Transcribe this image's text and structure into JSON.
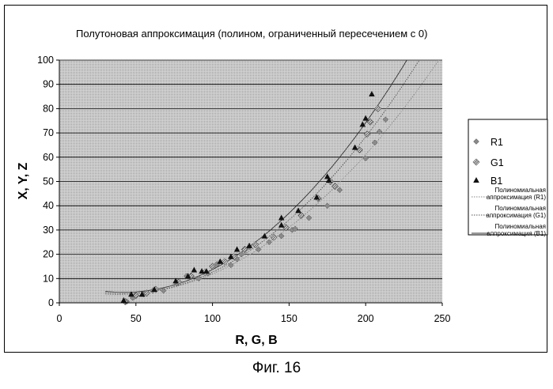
{
  "caption": "Фиг. 16",
  "chart_data": {
    "type": "scatter",
    "title": "Полутоновая аппроксимация (полином, ограниченный пересечением с 0)",
    "xlabel": "R, G, B",
    "ylabel": "X, Y, Z",
    "xlim": [
      0,
      250
    ],
    "ylim": [
      0,
      100
    ],
    "x_ticks": [
      "0",
      "50",
      "100",
      "150",
      "200",
      "250"
    ],
    "y_ticks": [
      "0",
      "10",
      "20",
      "30",
      "40",
      "50",
      "60",
      "70",
      "80",
      "90",
      "100"
    ],
    "grid": "horizontal",
    "legend_position": "right",
    "series": [
      {
        "name": "R1",
        "marker": "diamond",
        "color": "#8a8a8a",
        "points": [
          [
            44,
            0.5
          ],
          [
            48,
            2
          ],
          [
            55,
            3.5
          ],
          [
            61,
            5
          ],
          [
            68,
            5
          ],
          [
            77,
            8
          ],
          [
            83,
            11
          ],
          [
            91,
            10
          ],
          [
            97,
            12
          ],
          [
            103,
            16
          ],
          [
            112,
            15.5
          ],
          [
            116,
            18
          ],
          [
            119,
            20
          ],
          [
            124,
            23
          ],
          [
            130,
            22
          ],
          [
            137,
            25
          ],
          [
            145,
            27.5
          ],
          [
            152,
            30
          ],
          [
            154,
            30.5
          ],
          [
            163,
            35
          ],
          [
            175,
            40
          ],
          [
            183,
            46.5
          ],
          [
            200,
            59.5
          ],
          [
            206,
            66
          ],
          [
            209,
            70.5
          ],
          [
            213,
            75.5
          ]
        ]
      },
      {
        "name": "G1",
        "marker": "hatched",
        "color": "#606060",
        "points": [
          [
            43,
            0.5
          ],
          [
            50,
            3
          ],
          [
            57,
            4
          ],
          [
            63,
            5.5
          ],
          [
            78,
            8.5
          ],
          [
            86,
            11
          ],
          [
            95,
            12.5
          ],
          [
            100,
            15
          ],
          [
            108,
            17
          ],
          [
            114,
            19
          ],
          [
            121,
            22
          ],
          [
            128,
            24
          ],
          [
            140,
            27
          ],
          [
            148,
            31
          ],
          [
            158,
            36
          ],
          [
            169,
            43
          ],
          [
            177,
            50
          ],
          [
            180,
            48
          ],
          [
            196,
            63
          ],
          [
            201,
            69.5
          ],
          [
            203,
            74.5
          ],
          [
            208,
            80
          ]
        ]
      },
      {
        "name": "B1",
        "marker": "triangle",
        "color": "#111111",
        "points": [
          [
            42,
            1
          ],
          [
            47,
            3.5
          ],
          [
            54,
            3.5
          ],
          [
            62,
            5.5
          ],
          [
            76,
            9
          ],
          [
            84,
            11
          ],
          [
            88,
            13.5
          ],
          [
            93,
            13
          ],
          [
            96,
            13
          ],
          [
            105,
            17
          ],
          [
            112,
            19
          ],
          [
            116,
            22
          ],
          [
            124,
            23.5
          ],
          [
            134,
            27.5
          ],
          [
            145,
            32
          ],
          [
            145,
            35
          ],
          [
            156,
            38
          ],
          [
            168,
            43.5
          ],
          [
            175,
            52
          ],
          [
            176,
            50.5
          ],
          [
            193,
            64
          ],
          [
            198,
            73.5
          ],
          [
            200,
            76
          ],
          [
            204,
            86
          ]
        ]
      }
    ],
    "trendlines": [
      {
        "name": "Полиномиальная аппроксимация (R1)",
        "series": "R1",
        "style": "dotted",
        "color": "#888888"
      },
      {
        "name": "Полиномиальная аппроксимация (G1)",
        "series": "G1",
        "style": "dotted",
        "color": "#555555"
      },
      {
        "name": "Полиномиальная аппроксимация (B1)",
        "series": "B1",
        "style": "solid",
        "color": "#333333"
      }
    ]
  }
}
